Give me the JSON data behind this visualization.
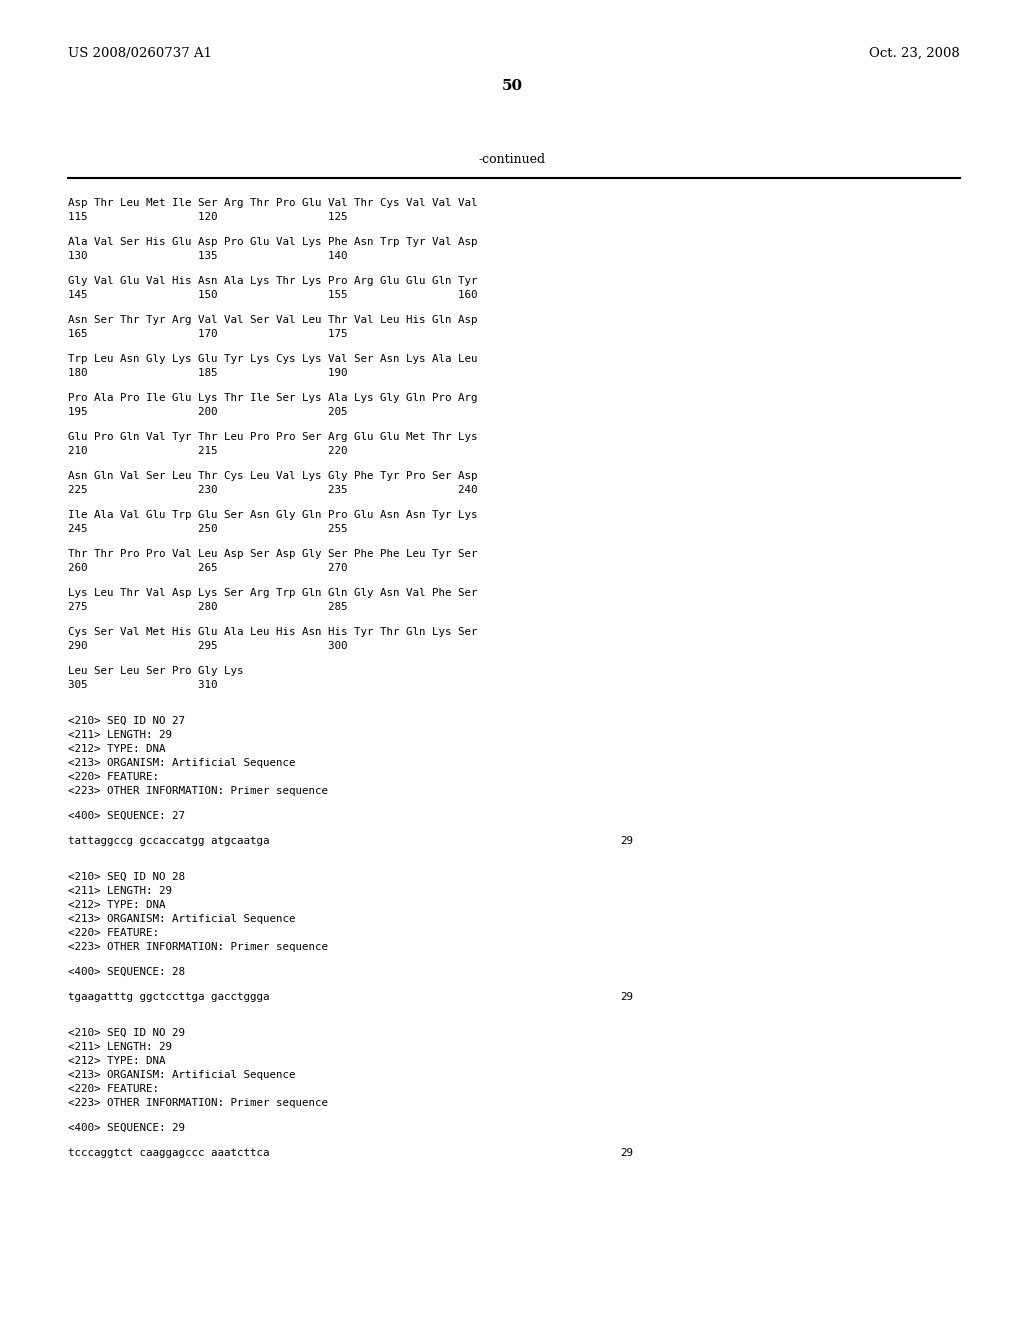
{
  "header_left": "US 2008/0260737 A1",
  "header_right": "Oct. 23, 2008",
  "page_number": "50",
  "continued_label": "-continued",
  "background_color": "#ffffff",
  "text_color": "#000000",
  "content_lines": [
    {
      "type": "seq_line",
      "text": "Asp Thr Leu Met Ile Ser Arg Thr Pro Glu Val Thr Cys Val Val Val"
    },
    {
      "type": "num_line",
      "text": "115                 120                 125"
    },
    {
      "type": "blank"
    },
    {
      "type": "seq_line",
      "text": "Ala Val Ser His Glu Asp Pro Glu Val Lys Phe Asn Trp Tyr Val Asp"
    },
    {
      "type": "num_line",
      "text": "130                 135                 140"
    },
    {
      "type": "blank"
    },
    {
      "type": "seq_line",
      "text": "Gly Val Glu Val His Asn Ala Lys Thr Lys Pro Arg Glu Glu Gln Tyr"
    },
    {
      "type": "num_line",
      "text": "145                 150                 155                 160"
    },
    {
      "type": "blank"
    },
    {
      "type": "seq_line",
      "text": "Asn Ser Thr Tyr Arg Val Val Ser Val Leu Thr Val Leu His Gln Asp"
    },
    {
      "type": "num_line",
      "text": "165                 170                 175"
    },
    {
      "type": "blank"
    },
    {
      "type": "seq_line",
      "text": "Trp Leu Asn Gly Lys Glu Tyr Lys Cys Lys Val Ser Asn Lys Ala Leu"
    },
    {
      "type": "num_line",
      "text": "180                 185                 190"
    },
    {
      "type": "blank"
    },
    {
      "type": "seq_line",
      "text": "Pro Ala Pro Ile Glu Lys Thr Ile Ser Lys Ala Lys Gly Gln Pro Arg"
    },
    {
      "type": "num_line",
      "text": "195                 200                 205"
    },
    {
      "type": "blank"
    },
    {
      "type": "seq_line",
      "text": "Glu Pro Gln Val Tyr Thr Leu Pro Pro Ser Arg Glu Glu Met Thr Lys"
    },
    {
      "type": "num_line",
      "text": "210                 215                 220"
    },
    {
      "type": "blank"
    },
    {
      "type": "seq_line",
      "text": "Asn Gln Val Ser Leu Thr Cys Leu Val Lys Gly Phe Tyr Pro Ser Asp"
    },
    {
      "type": "num_line",
      "text": "225                 230                 235                 240"
    },
    {
      "type": "blank"
    },
    {
      "type": "seq_line",
      "text": "Ile Ala Val Glu Trp Glu Ser Asn Gly Gln Pro Glu Asn Asn Tyr Lys"
    },
    {
      "type": "num_line",
      "text": "245                 250                 255"
    },
    {
      "type": "blank"
    },
    {
      "type": "seq_line",
      "text": "Thr Thr Pro Pro Val Leu Asp Ser Asp Gly Ser Phe Phe Leu Tyr Ser"
    },
    {
      "type": "num_line",
      "text": "260                 265                 270"
    },
    {
      "type": "blank"
    },
    {
      "type": "seq_line",
      "text": "Lys Leu Thr Val Asp Lys Ser Arg Trp Gln Gln Gly Asn Val Phe Ser"
    },
    {
      "type": "num_line",
      "text": "275                 280                 285"
    },
    {
      "type": "blank"
    },
    {
      "type": "seq_line",
      "text": "Cys Ser Val Met His Glu Ala Leu His Asn His Tyr Thr Gln Lys Ser"
    },
    {
      "type": "num_line",
      "text": "290                 295                 300"
    },
    {
      "type": "blank"
    },
    {
      "type": "seq_line",
      "text": "Leu Ser Leu Ser Pro Gly Lys"
    },
    {
      "type": "num_line",
      "text": "305                 310"
    },
    {
      "type": "blank"
    },
    {
      "type": "blank"
    },
    {
      "type": "meta_line",
      "text": "<210> SEQ ID NO 27"
    },
    {
      "type": "meta_line",
      "text": "<211> LENGTH: 29"
    },
    {
      "type": "meta_line",
      "text": "<212> TYPE: DNA"
    },
    {
      "type": "meta_line",
      "text": "<213> ORGANISM: Artificial Sequence"
    },
    {
      "type": "meta_line",
      "text": "<220> FEATURE:"
    },
    {
      "type": "meta_line",
      "text": "<223> OTHER INFORMATION: Primer sequence"
    },
    {
      "type": "blank"
    },
    {
      "type": "meta_line",
      "text": "<400> SEQUENCE: 27"
    },
    {
      "type": "blank"
    },
    {
      "type": "dna_line",
      "text": "tattaggccg gccaccatgg atgcaatga",
      "length": "29"
    },
    {
      "type": "blank"
    },
    {
      "type": "blank"
    },
    {
      "type": "meta_line",
      "text": "<210> SEQ ID NO 28"
    },
    {
      "type": "meta_line",
      "text": "<211> LENGTH: 29"
    },
    {
      "type": "meta_line",
      "text": "<212> TYPE: DNA"
    },
    {
      "type": "meta_line",
      "text": "<213> ORGANISM: Artificial Sequence"
    },
    {
      "type": "meta_line",
      "text": "<220> FEATURE:"
    },
    {
      "type": "meta_line",
      "text": "<223> OTHER INFORMATION: Primer sequence"
    },
    {
      "type": "blank"
    },
    {
      "type": "meta_line",
      "text": "<400> SEQUENCE: 28"
    },
    {
      "type": "blank"
    },
    {
      "type": "dna_line",
      "text": "tgaagatttg ggctccttga gacctggga",
      "length": "29"
    },
    {
      "type": "blank"
    },
    {
      "type": "blank"
    },
    {
      "type": "meta_line",
      "text": "<210> SEQ ID NO 29"
    },
    {
      "type": "meta_line",
      "text": "<211> LENGTH: 29"
    },
    {
      "type": "meta_line",
      "text": "<212> TYPE: DNA"
    },
    {
      "type": "meta_line",
      "text": "<213> ORGANISM: Artificial Sequence"
    },
    {
      "type": "meta_line",
      "text": "<220> FEATURE:"
    },
    {
      "type": "meta_line",
      "text": "<223> OTHER INFORMATION: Primer sequence"
    },
    {
      "type": "blank"
    },
    {
      "type": "meta_line",
      "text": "<400> SEQUENCE: 29"
    },
    {
      "type": "blank"
    },
    {
      "type": "dna_line",
      "text": "tcccaggtct caaggagccc aaatcttca",
      "length": "29"
    }
  ]
}
